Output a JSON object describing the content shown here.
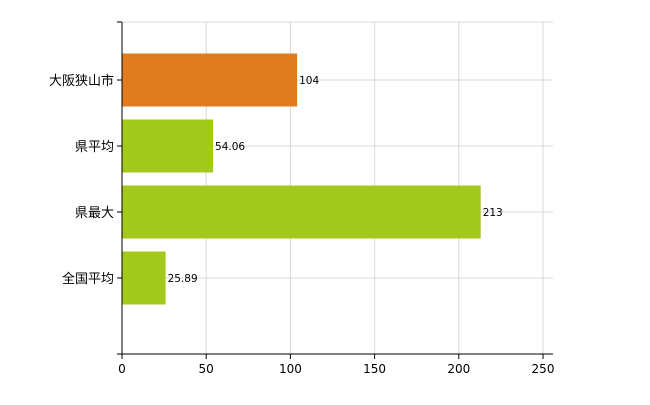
{
  "chart_data": {
    "type": "bar",
    "orientation": "horizontal",
    "categories": [
      "大阪狭山市",
      "県平均",
      "県最大",
      "全国平均"
    ],
    "values": [
      104,
      54.06,
      213,
      25.89
    ],
    "data_labels": [
      "104",
      "54.06",
      "213",
      "25.89"
    ],
    "bar_colors": [
      "#e07b20",
      "#a2c91c",
      "#a2c91c",
      "#a2c91c"
    ],
    "xlim": [
      0,
      250
    ],
    "xticks": [
      0,
      50,
      100,
      150,
      200,
      250
    ],
    "grid": true,
    "grid_color": "#d9d9d9",
    "title": "",
    "xlabel": "",
    "ylabel": ""
  }
}
